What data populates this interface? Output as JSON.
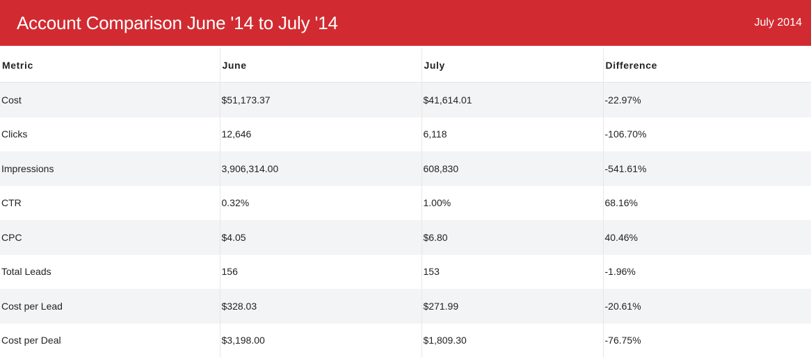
{
  "header": {
    "title": "Account Comparison June '14 to July '14",
    "date": "July 2014"
  },
  "colors": {
    "header_background": "#d12b31",
    "header_text": "#ffffff",
    "row_stripe": "#f3f4f6"
  },
  "table": {
    "columns": [
      "Metric",
      "June",
      "July",
      "Difference"
    ],
    "rows": [
      {
        "metric": "Cost",
        "june": "$51,173.37",
        "july": "$41,614.01",
        "difference": "-22.97%"
      },
      {
        "metric": "Clicks",
        "june": "12,646",
        "july": "6,118",
        "difference": "-106.70%"
      },
      {
        "metric": "Impressions",
        "june": "3,906,314.00",
        "july": "608,830",
        "difference": "-541.61%"
      },
      {
        "metric": "CTR",
        "june": "0.32%",
        "july": "1.00%",
        "difference": "68.16%"
      },
      {
        "metric": "CPC",
        "june": "$4.05",
        "july": "$6.80",
        "difference": "40.46%"
      },
      {
        "metric": "Total Leads",
        "june": "156",
        "july": "153",
        "difference": "-1.96%"
      },
      {
        "metric": "Cost per Lead",
        "june": "$328.03",
        "july": "$271.99",
        "difference": "-20.61%"
      },
      {
        "metric": "Cost per Deal",
        "june": "$3,198.00",
        "july": "$1,809.30",
        "difference": "-76.75%"
      }
    ]
  }
}
